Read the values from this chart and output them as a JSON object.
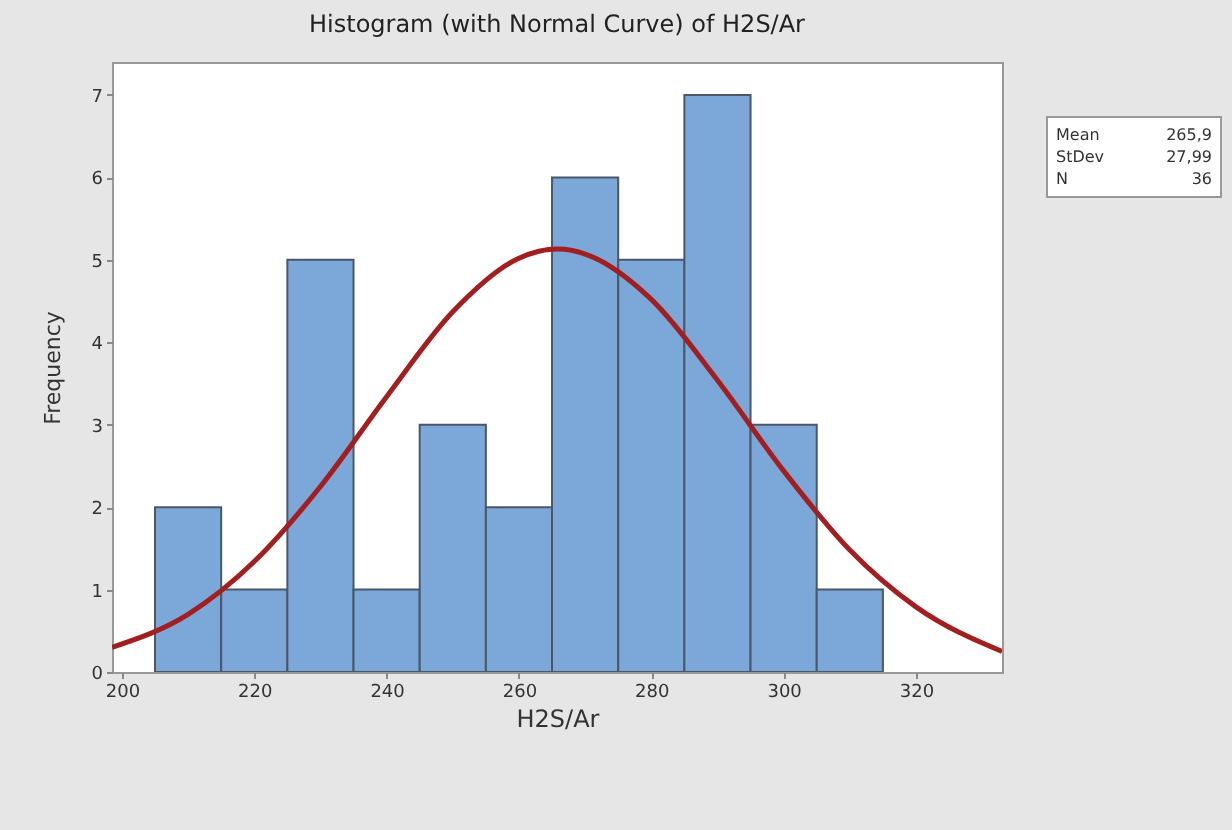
{
  "chart_data": {
    "type": "histogram",
    "title": "Histogram (with Normal Curve) of H2S/Ar",
    "xlabel": "H2S/Ar",
    "ylabel": "Frequency",
    "bins": [
      205,
      215,
      225,
      235,
      245,
      255,
      265,
      275,
      285,
      295,
      305,
      315
    ],
    "values": [
      2,
      1,
      5,
      1,
      3,
      2,
      6,
      5,
      7,
      3,
      1
    ],
    "color": "#7ba7d9",
    "series": [
      {
        "type": "line",
        "color": "#a31f1f",
        "x": [
          198.5,
          210,
          220,
          230,
          240,
          250,
          260,
          265.9,
          270,
          280,
          290,
          300,
          310,
          320,
          333
        ],
        "values": [
          0.3,
          0.7,
          1.34,
          2.25,
          3.34,
          4.37,
          5.02,
          5.13,
          5.07,
          4.52,
          3.54,
          2.44,
          1.48,
          0.79,
          0.25
        ]
      }
    ],
    "xlim": [
      198.5,
      333
    ],
    "xticks": [
      200,
      220,
      240,
      260,
      280,
      300,
      320
    ],
    "ylim": [
      0,
      7.4
    ],
    "yticks": [
      0,
      1,
      2,
      3,
      4,
      5,
      6,
      7
    ],
    "grid": false,
    "annotations": [
      "Mean 265,9",
      "StDev 27,99",
      "N 36"
    ]
  }
}
